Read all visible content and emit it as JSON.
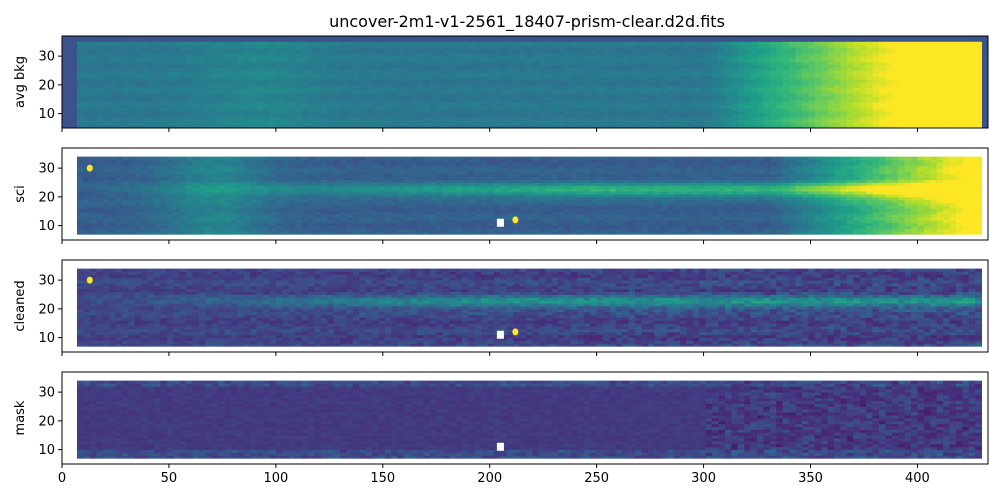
{
  "chart_data": {
    "type": "heatmap",
    "title": "uncover-2m1-v1-2561_18407-prism-clear.d2d.fits",
    "colormap": "viridis",
    "xlim": [
      0,
      433
    ],
    "ylim": [
      5,
      37
    ],
    "x_ticks": [
      0,
      50,
      100,
      150,
      200,
      250,
      300,
      350,
      400
    ],
    "y_ticks": [
      10,
      20,
      30
    ],
    "panels": [
      {
        "ylabel": "avg bkg",
        "background_color": "#3b528b",
        "data_extent": {
          "x0": 7,
          "x1": 428,
          "y0": 5,
          "y1": 35
        },
        "description": "smooth background, bright (yellow) toward x>380"
      },
      {
        "ylabel": "sci",
        "background_color": "#ffffff",
        "data_extent": {
          "x0": 7,
          "x1": 428,
          "y0": 7,
          "y1": 34
        },
        "trace_row": 22,
        "bright_spots": [
          {
            "x": 13,
            "y": 30
          },
          {
            "x": 212,
            "y": 12
          }
        ],
        "mask_holes": [
          {
            "x": 205,
            "y": 11
          }
        ]
      },
      {
        "ylabel": "cleaned",
        "background_color": "#ffffff",
        "data_extent": {
          "x0": 7,
          "x1": 428,
          "y0": 7,
          "y1": 34
        },
        "trace_row": 22,
        "bright_spots": [
          {
            "x": 13,
            "y": 30
          },
          {
            "x": 212,
            "y": 12
          }
        ],
        "mask_holes": [
          {
            "x": 205,
            "y": 11
          }
        ]
      },
      {
        "ylabel": "mask",
        "background_color": "#ffffff",
        "data_extent": {
          "x0": 7,
          "x1": 428,
          "y0": 7,
          "y1": 34
        },
        "mask_holes": [
          {
            "x": 205,
            "y": 11
          }
        ]
      }
    ]
  }
}
